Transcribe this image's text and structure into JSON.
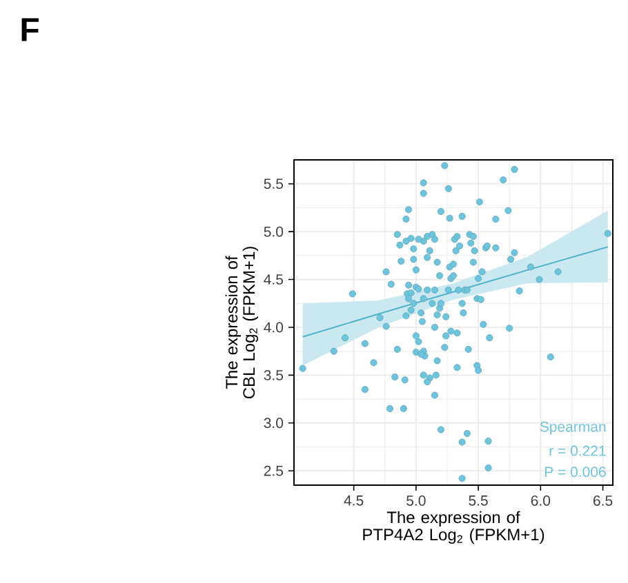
{
  "chart_data": {
    "type": "scatter",
    "title": "F",
    "xlabel": "The expression of PTP4A2 Log$_{2}$ (FPKM+1)",
    "ylabel": "The expression of CBL Log$_{2}$ (FPKM+1)",
    "xlim": [
      4.02,
      6.58
    ],
    "ylim": [
      2.35,
      5.75
    ],
    "xticks": [
      4.5,
      {
        "value": 5,
        "label": "5.0"
      },
      5.5,
      {
        "value": 6,
        "label": "6.0"
      },
      6.5
    ],
    "yticks": [
      2.5,
      {
        "value": 3,
        "label": "3.0"
      },
      3.5,
      {
        "value": 4,
        "label": "4.0"
      },
      4.5,
      {
        "value": 5,
        "label": "5.0"
      },
      5.5
    ],
    "grid": true,
    "marker": "circle",
    "annotations": [
      "Spearman",
      "r = 0.221",
      "P = 0.006"
    ],
    "series": [
      {
        "color": "#6cc5dc",
        "x": [
          4.09,
          4.34,
          4.43,
          4.49,
          4.59,
          4.59,
          4.66,
          4.71,
          4.76,
          4.76,
          4.8,
          4.79,
          4.83,
          4.85,
          4.9,
          4.91,
          4.88,
          4.87,
          4.92,
          4.94,
          4.92,
          4.96,
          4.98,
          5.0,
          4.94,
          4.93,
          4.96,
          4.98,
          4.92,
          4.96,
          5.0,
          5.02,
          5.04,
          5.05,
          5.06,
          5.0,
          5.02,
          5.06,
          5.07,
          5.0,
          5.04,
          5.06,
          5.11,
          5.09,
          5.15,
          5.16,
          5.17,
          5.2,
          5.06,
          5.06,
          5.06,
          5.09,
          5.11,
          5.13,
          5.15,
          5.17,
          5.19,
          5.09,
          5.15,
          5.13,
          5.19,
          5.17,
          5.24,
          5.24,
          5.23,
          5.26,
          5.28,
          5.27,
          5.3,
          5.3,
          5.31,
          5.32,
          5.33,
          5.35,
          5.34,
          5.37,
          5.38,
          5.39,
          5.41,
          5.42,
          5.41,
          5.37,
          5.33,
          5.28,
          5.23,
          5.26,
          5.2,
          5.27,
          5.37,
          5.43,
          5.44,
          5.46,
          5.46,
          5.5,
          5.49,
          5.52,
          5.53,
          5.51,
          5.54,
          5.59,
          5.49,
          5.5,
          5.58,
          5.58,
          5.37,
          5.47,
          5.56,
          5.57,
          5.64,
          5.64,
          5.7,
          5.79,
          5.74,
          5.75,
          5.76,
          5.79,
          5.83,
          5.92,
          5.99,
          6.14,
          6.08,
          6.54,
          5.33,
          5.15,
          5.2,
          5.09,
          4.98,
          5.02,
          4.94,
          4.85
        ],
        "values": [
          3.57,
          3.75,
          3.89,
          4.35,
          3.83,
          3.35,
          3.63,
          4.1,
          4.01,
          4.58,
          4.45,
          3.15,
          3.48,
          3.77,
          3.15,
          3.45,
          4.69,
          4.86,
          5.13,
          5.23,
          4.9,
          4.93,
          4.82,
          4.6,
          4.44,
          4.35,
          4.36,
          4.25,
          4.12,
          4.18,
          4.42,
          4.4,
          4.15,
          4.06,
          4.3,
          3.91,
          3.85,
          3.75,
          3.7,
          3.74,
          3.72,
          3.5,
          3.47,
          3.43,
          3.29,
          3.5,
          3.65,
          2.93,
          5.51,
          5.4,
          4.9,
          4.95,
          4.8,
          4.97,
          4.92,
          4.68,
          4.54,
          4.39,
          4.39,
          4.25,
          4.2,
          4.13,
          4.11,
          3.91,
          3.79,
          4.39,
          4.51,
          4.63,
          4.66,
          4.54,
          4.92,
          4.8,
          4.95,
          4.85,
          4.39,
          4.25,
          4.15,
          4.39,
          4.39,
          3.77,
          2.89,
          2.8,
          3.58,
          3.96,
          5.69,
          5.45,
          5.21,
          5.14,
          5.16,
          4.97,
          4.88,
          4.95,
          4.68,
          4.51,
          4.3,
          4.29,
          4.58,
          5.31,
          4.03,
          3.89,
          3.6,
          3.55,
          2.81,
          2.53,
          2.42,
          4.8,
          4.83,
          4.85,
          5.13,
          4.83,
          5.54,
          5.65,
          5.22,
          3.99,
          4.71,
          4.78,
          4.38,
          4.63,
          4.5,
          4.58,
          3.69,
          4.98,
          3.94,
          4.0,
          4.25,
          4.73,
          4.71,
          4.92,
          4.3,
          4.97
        ]
      },
      {
        "type": "line",
        "marker": "none",
        "color": "#4fb3cc",
        "x": [
          4.09,
          4.7,
          5.3,
          5.9,
          6.54
        ],
        "values": [
          3.9,
          4.14,
          4.37,
          4.6,
          4.84
        ],
        "lower": [
          3.6,
          4.0,
          4.29,
          4.46,
          4.47
        ],
        "upper": [
          4.25,
          4.28,
          4.46,
          4.74,
          5.22
        ]
      }
    ]
  }
}
